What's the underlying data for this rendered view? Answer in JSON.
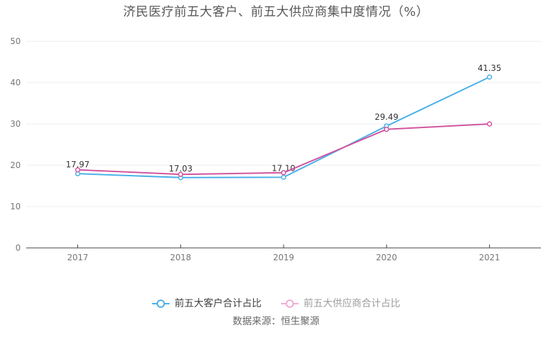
{
  "title": "济民医疗前五大客户、前五大供应商集中度情况（%）",
  "source_note": "数据来源：恒生聚源",
  "legend": {
    "items": [
      {
        "label": "前五大客户合计占比",
        "marker_color": "#49b0e8",
        "text_color": "#3f3f3f"
      },
      {
        "label": "前五大供应商合计占比",
        "marker_color": "#f0abd4",
        "text_color": "#9c9c9c"
      }
    ]
  },
  "chart_data": {
    "type": "line",
    "title": "济民医疗前五大客户、前五大供应商集中度情况（%）",
    "categories": [
      "2017",
      "2018",
      "2019",
      "2020",
      "2021"
    ],
    "series": [
      {
        "name": "前五大客户合计占比",
        "color": "#49b0e8",
        "values": [
          17.97,
          17.03,
          17.1,
          29.49,
          41.35
        ],
        "data_labels": [
          "17.97",
          "17.03",
          "17.10",
          "29.49",
          "41.35"
        ]
      },
      {
        "name": "前五大供应商合计占比",
        "color": "#d1539e",
        "values": [
          18.9,
          17.8,
          18.2,
          28.7,
          30.0
        ],
        "data_labels": null
      }
    ],
    "xlabel": "",
    "ylabel": "",
    "ylim": [
      0,
      50
    ],
    "yticks": [
      0,
      10,
      20,
      30,
      40,
      50
    ],
    "grid": true,
    "legend_position": "bottom",
    "marker": "empty-circle"
  },
  "style": {
    "background": "#ffffff",
    "title_color": "#595959",
    "grid_color": "#e9edf2",
    "axis_color": "#404040",
    "tick_text_color": "#757575",
    "data_label_color": "#333333",
    "source_color": "#666666"
  }
}
